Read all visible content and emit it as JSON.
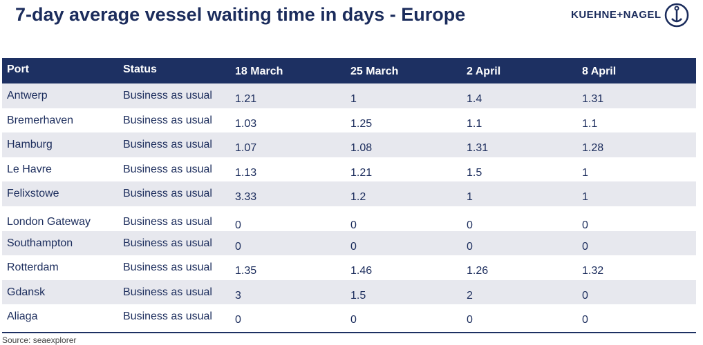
{
  "header": {
    "title": "7-day average vessel waiting time in days - Europe",
    "logo": "KUEHNE+NAGEL"
  },
  "table": {
    "columns": [
      "Port",
      "Status",
      "18 March",
      "25 March",
      "2 April",
      "8 April"
    ],
    "rows": [
      [
        "Antwerp",
        "Business as usual",
        1.21,
        1,
        1.4,
        1.31
      ],
      [
        "Bremerhaven",
        "Business as usual",
        1.03,
        1.25,
        1.1,
        1.1
      ],
      [
        "Hamburg",
        "Business as usual",
        1.07,
        1.08,
        1.31,
        1.28
      ],
      [
        "Le Havre",
        "Business as usual",
        1.13,
        1.21,
        1.5,
        1
      ],
      [
        "Felixstowe",
        "Business as usual",
        3.33,
        1.2,
        1,
        1
      ],
      [
        "London Gateway",
        "Business as usual",
        0,
        0,
        0,
        0
      ],
      [
        "Southampton",
        "Business as usual",
        0,
        0,
        0,
        0
      ],
      [
        "Rotterdam",
        "Business as usual",
        1.35,
        1.46,
        1.26,
        1.32
      ],
      [
        "Gdansk",
        "Business as usual",
        3,
        1.5,
        2,
        0
      ],
      [
        "Aliaga",
        "Business as usual",
        0,
        0,
        0,
        0
      ]
    ]
  },
  "source": "Source: seaexplorer"
}
